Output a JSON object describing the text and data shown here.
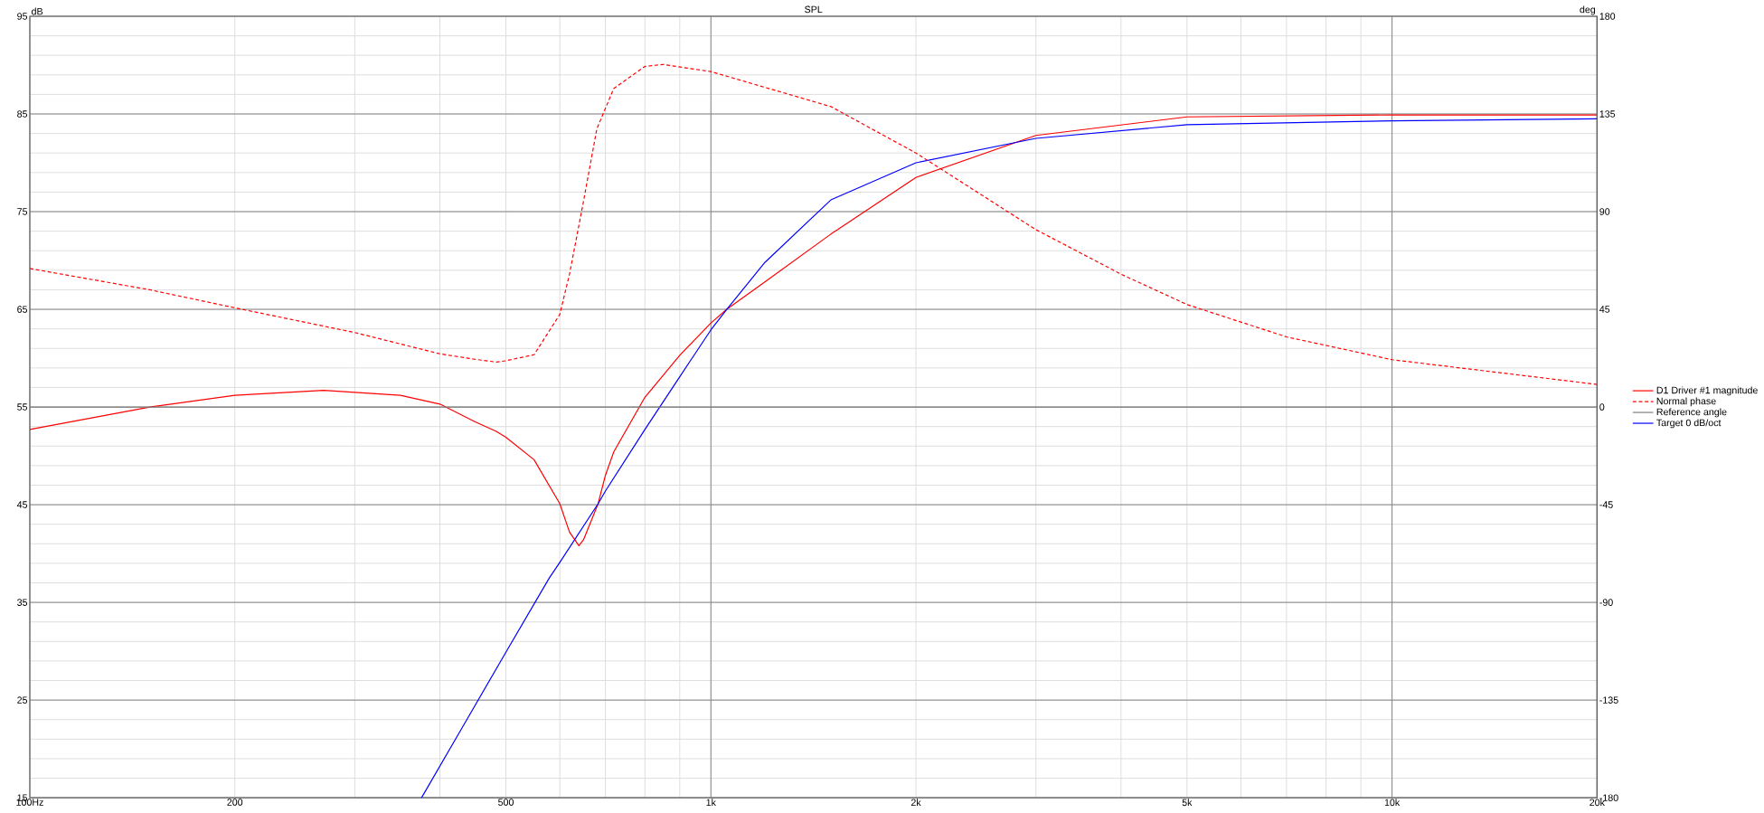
{
  "chart_data": {
    "type": "line",
    "title": "SPL",
    "ylabel": "dB",
    "y2label": "deg",
    "log": "x",
    "grid": true,
    "legend": "right",
    "xlim": [
      100,
      20000
    ],
    "ylim": [
      15,
      95
    ],
    "y2lim": [
      -180,
      180
    ],
    "xticks": [
      {
        "value": 100,
        "label": "100Hz"
      },
      200,
      {
        "value": 300,
        "label": null
      },
      {
        "value": 400,
        "label": null
      },
      500,
      {
        "value": 600,
        "label": null
      },
      {
        "value": 700,
        "label": null
      },
      {
        "value": 800,
        "label": null
      },
      {
        "value": 900,
        "label": null
      },
      {
        "value": 1000,
        "label": "1k"
      },
      {
        "value": 2000,
        "label": "2k"
      },
      {
        "value": 3000,
        "label": null
      },
      {
        "value": 4000,
        "label": null
      },
      {
        "value": 5000,
        "label": "5k"
      },
      {
        "value": 6000,
        "label": null
      },
      {
        "value": 7000,
        "label": null
      },
      {
        "value": 8000,
        "label": null
      },
      {
        "value": 9000,
        "label": null
      },
      {
        "value": 10000,
        "label": "10k"
      },
      {
        "value": 20000,
        "label": "20k"
      }
    ],
    "yticks": [
      15,
      {
        "value": 17,
        "label": null
      },
      {
        "value": 19,
        "label": null
      },
      {
        "value": 21,
        "label": null
      },
      {
        "value": 23,
        "label": null
      },
      25,
      {
        "value": 27,
        "label": null
      },
      {
        "value": 29,
        "label": null
      },
      {
        "value": 31,
        "label": null
      },
      {
        "value": 33,
        "label": null
      },
      35,
      {
        "value": 37,
        "label": null
      },
      {
        "value": 39,
        "label": null
      },
      {
        "value": 41,
        "label": null
      },
      {
        "value": 43,
        "label": null
      },
      45,
      {
        "value": 47,
        "label": null
      },
      {
        "value": 49,
        "label": null
      },
      {
        "value": 51,
        "label": null
      },
      {
        "value": 53,
        "label": null
      },
      55,
      {
        "value": 57,
        "label": null
      },
      {
        "value": 59,
        "label": null
      },
      {
        "value": 61,
        "label": null
      },
      {
        "value": 63,
        "label": null
      },
      65,
      {
        "value": 67,
        "label": null
      },
      {
        "value": 69,
        "label": null
      },
      {
        "value": 71,
        "label": null
      },
      {
        "value": 73,
        "label": null
      },
      75,
      {
        "value": 77,
        "label": null
      },
      {
        "value": 79,
        "label": null
      },
      {
        "value": 81,
        "label": null
      },
      {
        "value": 83,
        "label": null
      },
      85,
      {
        "value": 87,
        "label": null
      },
      {
        "value": 89,
        "label": null
      },
      {
        "value": 91,
        "label": null
      },
      {
        "value": 93,
        "label": null
      },
      95
    ],
    "y2ticks": [
      -180,
      -135,
      -90,
      -45,
      0,
      45,
      90,
      135,
      180
    ],
    "series": [
      {
        "name": "D1 Driver #1 magnitude",
        "color": "#ff0000",
        "line_style": "solid",
        "x": [
          100,
          150,
          200,
          270,
          350,
          400,
          450,
          484,
          500,
          550,
          600,
          620,
          640,
          650,
          683,
          700,
          720,
          800,
          900,
          1000,
          1055,
          1200,
          1500,
          2000,
          3000,
          5000,
          10000,
          20000
        ],
        "values": [
          52.7,
          55.0,
          56.2,
          56.7,
          56.2,
          55.3,
          53.5,
          52.5,
          51.9,
          49.6,
          45.1,
          42.2,
          40.8,
          41.4,
          45.1,
          48.0,
          50.4,
          56.0,
          60.3,
          63.6,
          65.0,
          67.8,
          72.7,
          78.5,
          82.8,
          84.7,
          84.9,
          84.9
        ]
      },
      {
        "name": "Normal phase",
        "color": "#ff0000",
        "line_style": "dashed",
        "axis": "y2",
        "x": [
          100,
          150,
          200,
          300,
          400,
          450,
          484,
          500,
          550,
          600,
          620,
          650,
          680,
          720,
          800,
          850,
          1000,
          1500,
          2000,
          3000,
          4000,
          5000,
          7000,
          10000,
          20000
        ],
        "values": [
          63.8,
          54,
          45.7,
          34.3,
          24.5,
          22,
          20.7,
          21.3,
          24.1,
          42.7,
          61.2,
          94.7,
          128.1,
          146.7,
          156.9,
          157.8,
          154.5,
          138.4,
          117,
          81.7,
          61.2,
          47.2,
          32.3,
          21.8,
          10.4
        ]
      },
      {
        "name": "Reference angle",
        "color": "#808080",
        "line_style": "solid",
        "axis": "y2",
        "x": [
          100,
          20000
        ],
        "values": [
          0,
          0
        ]
      },
      {
        "name": "Target 0 dB/oct",
        "color": "#0000ff",
        "line_style": "solid",
        "x": [
          376,
          500,
          579,
          600,
          683,
          700,
          800,
          900,
          1000,
          1055,
          1200,
          1500,
          2000,
          3000,
          5000,
          10000,
          20000
        ],
        "values": [
          15,
          29.9,
          37.5,
          39.1,
          45.1,
          46.4,
          52.7,
          58.1,
          62.9,
          65.0,
          69.8,
          76.2,
          80.0,
          82.5,
          83.9,
          84.3,
          84.5
        ]
      }
    ]
  }
}
